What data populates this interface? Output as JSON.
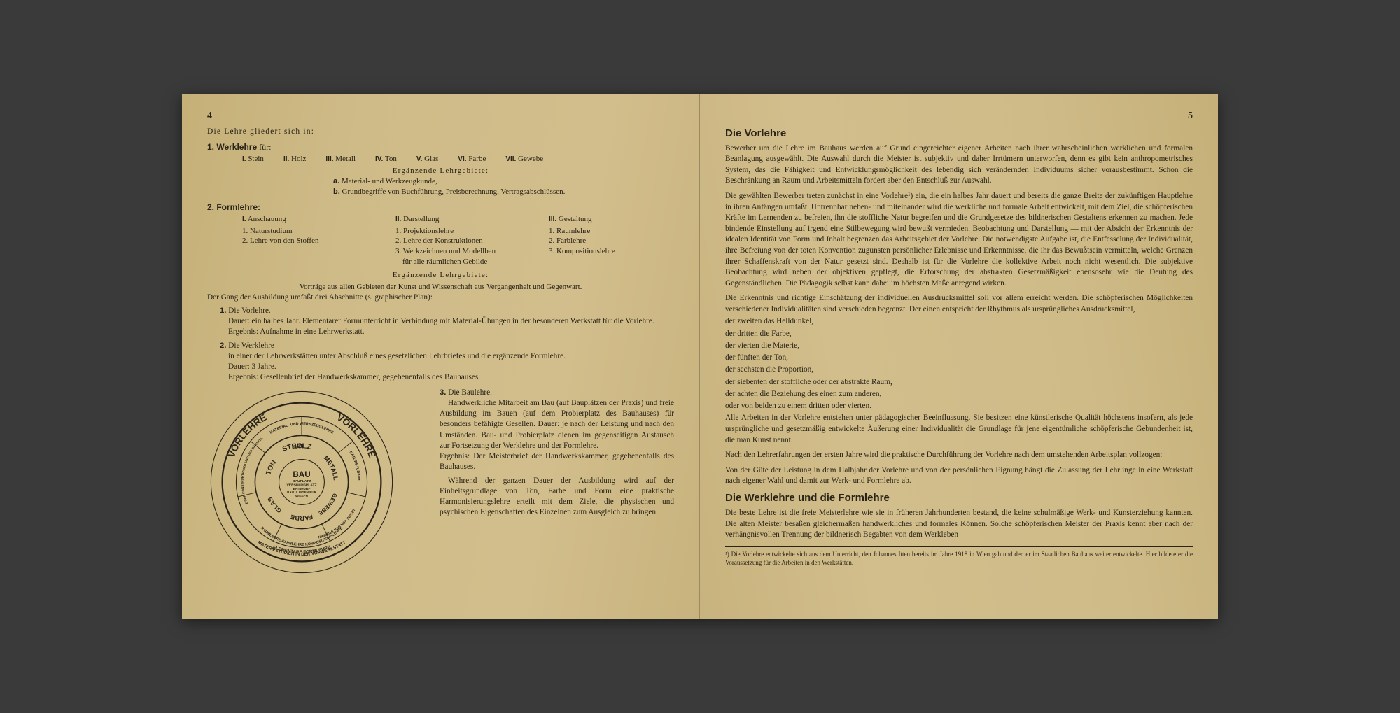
{
  "left": {
    "page_num": "4",
    "intro": "Die Lehre gliedert sich in:",
    "s1_head": "1. Werklehre",
    "s1_head_suffix": " für:",
    "materials": [
      {
        "n": "I.",
        "t": "Stein"
      },
      {
        "n": "II.",
        "t": "Holz"
      },
      {
        "n": "III.",
        "t": "Metall"
      },
      {
        "n": "IV.",
        "t": "Ton"
      },
      {
        "n": "V.",
        "t": "Glas"
      },
      {
        "n": "VI.",
        "t": "Farbe"
      },
      {
        "n": "VII.",
        "t": "Gewebe"
      }
    ],
    "erg_title": "Ergänzende Lehrgebiete:",
    "erg_a": "a.",
    "erg_a_t": " Material- und Werkzeugkunde,",
    "erg_b": "b.",
    "erg_b_t": " Grundbegriffe von Buchführung, Preisberechnung, Vertragsabschlüssen.",
    "s2_head": "2. Formlehre:",
    "formcols": {
      "c1": {
        "head_n": "I.",
        "head_t": "Anschauung",
        "l1": "1. Naturstudium",
        "l2": "2. Lehre von den Stoffen"
      },
      "c2": {
        "head_n": "II.",
        "head_t": "Darstellung",
        "l1": "1. Projektionslehre",
        "l2": "2. Lehre der Konstruktionen",
        "l3": "3. Werkzeichnen und Modellbau",
        "l3b": "   für alle räumlichen Gebilde"
      },
      "c3": {
        "head_n": "III.",
        "head_t": "Gestaltung",
        "l1": "1. Raumlehre",
        "l2": "2. Farblehre",
        "l3": "3. Kompositionslehre"
      }
    },
    "erg2_title": "Ergänzende Lehrgebiete:",
    "erg2_line": "Vorträge aus allen Gebieten der Kunst und Wissenschaft aus Vergangenheit und Gegenwart.",
    "gang": "Der Gang der Ausbildung umfaßt drei Abschnitte (s. graphischer Plan):",
    "a1_n": "1.",
    "a1_t": "Die Vorlehre.",
    "a1_body": "Dauer: ein halbes Jahr. Elementarer Formunterricht in Verbindung mit Material-Übungen in der besonderen Werkstatt für die Vorlehre.",
    "a1_erg": "Ergebnis: Aufnahme in eine Lehrwerkstatt.",
    "a2_n": "2.",
    "a2_t": "Die Werklehre",
    "a2_body": "in einer der Lehrwerkstätten unter Abschluß eines gesetzlichen Lehrbriefes und die ergänzende Formlehre.",
    "a2_dauer": "Dauer: 3 Jahre.",
    "a2_erg": "Ergebnis: Gesellenbrief der Handwerkskammer, gegebenenfalls des Bauhauses.",
    "a3_n": "3.",
    "a3_t": "Die Baulehre.",
    "a3_p1": "Handwerkliche Mitarbeit am Bau (auf Bauplätzen der Praxis) und freie Ausbildung im Bauen (auf dem Probierplatz des Bauhauses) für besonders befähigte Gesellen. Dauer: je nach der Leistung und nach den Umständen. Bau- und Probierplatz dienen im gegenseitigen Austausch zur Fortsetzung der Werklehre und der Formlehre.",
    "a3_erg": "Ergebnis: Der Meisterbrief der Handwerkskammer, gegebenenfalls des Bauhauses.",
    "a3_p2": "Während der ganzen Dauer der Ausbildung wird auf der Einheitsgrundlage von Ton, Farbe und Form eine praktische Harmonisierungslehre erteilt mit dem Ziele, die physischen und psychischen Eigenschaften des Einzelnen zum Ausgleich zu bringen.",
    "wheel": {
      "center": [
        "BAU",
        "BAUPLATZ",
        "VERSUCHSPLATZ",
        "ENTWURF",
        "BAU U. INGENIEUR",
        "WISSEN"
      ],
      "materials": [
        "STEIN",
        "HOLZ",
        "METALL",
        "GEWEBE",
        "FARBE",
        "GLAS",
        "TON"
      ],
      "ring3_top": "MATERIAL- UND WERKZEUGLEHRE",
      "ring3_right": "NATURSTUDIUM",
      "ring3_rightb": "LEHRE VON DEN STOFFEN",
      "ring3_bottom": "RAUMLEHRE-FARBLEHRE KOMPOSITIONSLEHRE",
      "ring3_left": "LEHRE DER KONSTRUKTIONEN UND DER DARSTELLUNG",
      "vorlehre": "VORLEHRE",
      "outer": "ELEMENTARE FORMLEHRE  MATERIESTUDIEN IN DER VORWERKSTATT",
      "jahr": "½ JAHR  3 JAHRE"
    }
  },
  "right": {
    "page_num": "5",
    "h1": "Die Vorlehre",
    "p1": "Bewerber um die Lehre im Bauhaus werden auf Grund eingereichter eigener Arbeiten nach ihrer wahrscheinlichen werklichen und formalen Beanlagung ausgewählt. Die Auswahl durch die Meister ist subjektiv und daher Irrtümern unterworfen, denn es gibt kein anthropometrisches System, das die Fähigkeit und Entwicklungsmöglichkeit des lebendig sich verändernden Individuums sicher vorausbestimmt. Schon die Beschränkung an Raum und Arbeitsmitteln fordert aber den Entschluß zur Auswahl.",
    "p2": "Die gewählten Bewerber treten zunächst in eine Vorlehre¹) ein, die ein halbes Jahr dauert und bereits die ganze Breite der zukünftigen Hauptlehre in ihren Anfängen umfaßt. Untrennbar neben- und miteinander wird die werkliche und formale Arbeit entwickelt, mit dem Ziel, die schöpferischen Kräfte im Lernenden zu befreien, ihn die stoffliche Natur begreifen und die Grundgesetze des bildnerischen Gestaltens erkennen zu machen. Jede bindende Einstellung auf irgend eine Stilbewegung wird bewußt vermieden. Beobachtung und Darstellung — mit der Absicht der Erkenntnis der idealen Identität von Form und Inhalt begrenzen das Arbeitsgebiet der Vorlehre. Die notwendigste Aufgabe ist, die Entfesselung der Individualität, ihre Befreiung von der toten Konvention zugunsten persönlicher Erlebnisse und Erkenntnisse, die ihr das Bewußtsein vermitteln, welche Grenzen ihrer Schaffenskraft von der Natur gesetzt sind. Deshalb ist für die Vorlehre die kollektive Arbeit noch nicht wesentlich. Die subjektive Beobachtung wird neben der objektiven gepflegt, die Erforschung der abstrakten Gesetzmäßigkeit ebensosehr wie die Deutung des Gegenständlichen. Die Pädagogik selbst kann dabei im höchsten Maße anregend wirken.",
    "p3": "Die Erkenntnis und richtige Einschätzung der individuellen Ausdrucksmittel soll vor allem erreicht werden. Die schöpferischen Möglichkeiten verschiedener Individualitäten sind verschieden begrenzt. Der einen entspricht der Rhythmus als ursprüngliches Ausdrucksmittel,",
    "list": [
      "der zweiten das Helldunkel,",
      "der dritten die Farbe,",
      "der vierten die Materie,",
      "der fünften der Ton,",
      "der sechsten die Proportion,",
      "der siebenten der stoffliche oder der abstrakte Raum,",
      "der achten die Beziehung des einen zum anderen,",
      "oder von beiden zu einem dritten oder vierten."
    ],
    "p4": "Alle Arbeiten in der Vorlehre entstehen unter pädagogischer Beeinflussung. Sie besitzen eine künstlerische Qualität höchstens insofern, als jede ursprüngliche und gesetzmäßig entwickelte Äußerung einer Individualität die Grundlage für jene eigentümliche schöpferische Gebundenheit ist, die man Kunst nennt.",
    "p5": "Nach den Lehrerfahrungen der ersten Jahre wird die praktische Durchführung der Vorlehre nach dem umstehenden Arbeitsplan vollzogen:",
    "p6": "Von der Güte der Leistung in dem Halbjahr der Vorlehre und von der persönlichen Eignung hängt die Zulassung der Lehrlinge in eine Werkstatt nach eigener Wahl und damit zur Werk- und Formlehre ab.",
    "h2": "Die Werklehre und die Formlehre",
    "p7": "Die beste Lehre ist die freie Meisterlehre wie sie in früheren Jahrhunderten bestand, die keine schulmäßige Werk- und Kunsterziehung kannten. Die alten Meister besaßen gleichermaßen handwerkliches und formales Können. Solche schöpferischen Meister der Praxis kennt aber nach der verhängnisvollen Trennung der bildnerisch Begabten von dem Werkleben",
    "footnote": "¹) Die Vorlehre entwickelte sich aus dem Unterricht, den Johannes Itten bereits im Jahre 1918 in Wien gab und den er im Staatlichen Bauhaus weiter entwickelte. Hier bildete er die Voraussetzung für die Arbeiten in den Werkstätten."
  }
}
